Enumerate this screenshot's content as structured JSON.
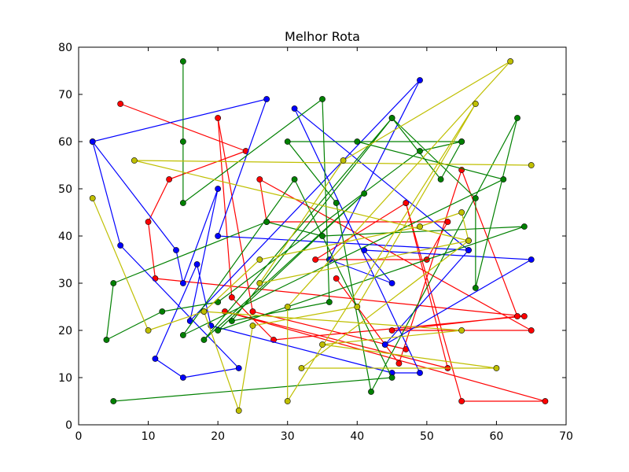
{
  "chart_data": {
    "type": "line",
    "title": "Melhor Rota",
    "xlabel": "",
    "ylabel": "",
    "xlim": [
      0,
      70
    ],
    "ylim": [
      0,
      80
    ],
    "x_ticks": [
      0,
      10,
      20,
      30,
      40,
      50,
      60,
      70
    ],
    "y_ticks": [
      0,
      10,
      20,
      30,
      40,
      50,
      60,
      70,
      80
    ],
    "grid": false,
    "legend": "none",
    "markers": true,
    "series": [
      {
        "color": "#ff0000",
        "points": [
          [
            6,
            68
          ],
          [
            24,
            58
          ],
          [
            13,
            52
          ],
          [
            10,
            43
          ],
          [
            11,
            31
          ],
          [
            64,
            23
          ],
          [
            28,
            18
          ],
          [
            22,
            27
          ],
          [
            20,
            65
          ],
          [
            25,
            24
          ],
          [
            47,
            16
          ],
          [
            44,
            17
          ],
          [
            37,
            31
          ],
          [
            46,
            13
          ],
          [
            55,
            54
          ],
          [
            63,
            23
          ],
          [
            45,
            20
          ],
          [
            65,
            20
          ],
          [
            26,
            52
          ],
          [
            27,
            43
          ],
          [
            53,
            43
          ],
          [
            50,
            35
          ],
          [
            34,
            35
          ],
          [
            47,
            47
          ],
          [
            53,
            12
          ],
          [
            21,
            24
          ],
          [
            67,
            5
          ],
          [
            55,
            5
          ],
          [
            47,
            47
          ]
        ]
      },
      {
        "color": "#0000ff",
        "points": [
          [
            2,
            60
          ],
          [
            6,
            38
          ],
          [
            23,
            12
          ],
          [
            15,
            10
          ],
          [
            11,
            14
          ],
          [
            17,
            34
          ],
          [
            19,
            21
          ],
          [
            45,
            11
          ],
          [
            49,
            11
          ],
          [
            31,
            67
          ],
          [
            56,
            37
          ],
          [
            20,
            40
          ],
          [
            27,
            69
          ],
          [
            2,
            60
          ],
          [
            14,
            37
          ],
          [
            15,
            30
          ],
          [
            20,
            50
          ],
          [
            16,
            22
          ],
          [
            49,
            73
          ],
          [
            36,
            35
          ],
          [
            45,
            30
          ],
          [
            41,
            37
          ],
          [
            65,
            35
          ],
          [
            44,
            17
          ],
          [
            56,
            37
          ]
        ]
      },
      {
        "color": "#008000",
        "points": [
          [
            15,
            77
          ],
          [
            15,
            60
          ],
          [
            15,
            47
          ],
          [
            35,
            69
          ],
          [
            36,
            26
          ],
          [
            22,
            22
          ],
          [
            45,
            65
          ],
          [
            57,
            48
          ],
          [
            57,
            29
          ],
          [
            63,
            65
          ],
          [
            42,
            7
          ],
          [
            37,
            47
          ],
          [
            30,
            60
          ],
          [
            55,
            60
          ],
          [
            52,
            52
          ],
          [
            45,
            65
          ],
          [
            18,
            18
          ],
          [
            41,
            49
          ],
          [
            20,
            20
          ],
          [
            64,
            42
          ],
          [
            35,
            40
          ],
          [
            27,
            43
          ],
          [
            5,
            30
          ],
          [
            4,
            18
          ],
          [
            12,
            24
          ],
          [
            20,
            26
          ],
          [
            49,
            58
          ],
          [
            55,
            60
          ],
          [
            40,
            60
          ],
          [
            61,
            52
          ],
          [
            15,
            19
          ],
          [
            31,
            52
          ],
          [
            45,
            10
          ],
          [
            5,
            5
          ]
        ]
      },
      {
        "color": "#bfbf00",
        "points": [
          [
            2,
            48
          ],
          [
            10,
            20
          ],
          [
            18,
            24
          ],
          [
            26,
            35
          ],
          [
            49,
            42
          ],
          [
            55,
            45
          ],
          [
            56,
            39
          ],
          [
            26,
            30
          ],
          [
            38,
            56
          ],
          [
            62,
            77
          ],
          [
            30,
            25
          ],
          [
            30,
            5
          ],
          [
            57,
            68
          ],
          [
            40,
            25
          ],
          [
            25,
            21
          ],
          [
            23,
            3
          ],
          [
            18,
            24
          ],
          [
            55,
            20
          ],
          [
            35,
            17
          ],
          [
            60,
            12
          ],
          [
            32,
            12
          ],
          [
            56,
            39
          ],
          [
            8,
            56
          ],
          [
            65,
            55
          ]
        ]
      }
    ]
  }
}
